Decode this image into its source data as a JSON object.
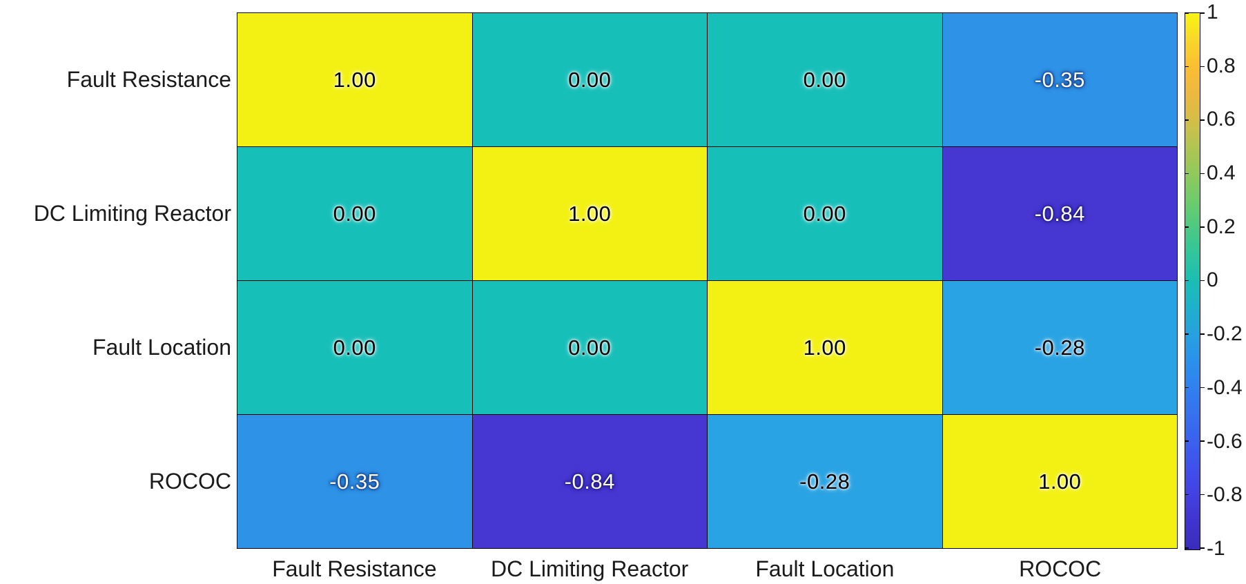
{
  "chart_data": {
    "type": "heatmap",
    "title": "",
    "colormap": "parula",
    "value_range": [
      -1,
      1
    ],
    "x_categories": [
      "Fault Resistance",
      "DC Limiting Reactor",
      "Fault Location",
      "ROCOC"
    ],
    "y_categories": [
      "Fault Resistance",
      "DC Limiting Reactor",
      "Fault Location",
      "ROCOC"
    ],
    "matrix": [
      [
        1.0,
        0.0,
        0.0,
        -0.35
      ],
      [
        0.0,
        1.0,
        0.0,
        -0.84
      ],
      [
        0.0,
        0.0,
        1.0,
        -0.28
      ],
      [
        -0.35,
        -0.84,
        -0.28,
        1.0
      ]
    ],
    "cells": [
      {
        "label": "1.00",
        "bg": "#F3F113",
        "fg": "#000000"
      },
      {
        "label": "0.00",
        "bg": "#17BFB9",
        "fg": "#000000"
      },
      {
        "label": "0.00",
        "bg": "#17BFB9",
        "fg": "#000000"
      },
      {
        "label": "-0.35",
        "bg": "#2E92E7",
        "fg": "#FFFFFF"
      },
      {
        "label": "0.00",
        "bg": "#17BFB9",
        "fg": "#000000"
      },
      {
        "label": "1.00",
        "bg": "#F3F113",
        "fg": "#000000"
      },
      {
        "label": "0.00",
        "bg": "#17BFB9",
        "fg": "#000000"
      },
      {
        "label": "-0.84",
        "bg": "#4636D2",
        "fg": "#FFFFFF"
      },
      {
        "label": "0.00",
        "bg": "#17BFB9",
        "fg": "#000000"
      },
      {
        "label": "0.00",
        "bg": "#17BFB9",
        "fg": "#000000"
      },
      {
        "label": "1.00",
        "bg": "#F3F113",
        "fg": "#000000"
      },
      {
        "label": "-0.28",
        "bg": "#29A3E3",
        "fg": "#000000"
      },
      {
        "label": "-0.35",
        "bg": "#2E92E7",
        "fg": "#FFFFFF"
      },
      {
        "label": "-0.84",
        "bg": "#4636D2",
        "fg": "#FFFFFF"
      },
      {
        "label": "-0.28",
        "bg": "#29A3E3",
        "fg": "#000000"
      },
      {
        "label": "1.00",
        "bg": "#F3F113",
        "fg": "#000000"
      }
    ],
    "colorbar": {
      "min": -1,
      "max": 1,
      "tick_labels": [
        "1",
        "0.8",
        "0.6",
        "0.4",
        "0.2",
        "0",
        "-0.2",
        "-0.4",
        "-0.6",
        "-0.8",
        "-1"
      ],
      "gradient_stops": [
        {
          "pos": 0.0,
          "color": "#3A2CB9"
        },
        {
          "pos": 0.05,
          "color": "#4033CE"
        },
        {
          "pos": 0.1,
          "color": "#4341E0"
        },
        {
          "pos": 0.15,
          "color": "#4050EA"
        },
        {
          "pos": 0.2,
          "color": "#3B60EE"
        },
        {
          "pos": 0.25,
          "color": "#3670EE"
        },
        {
          "pos": 0.3,
          "color": "#3180EF"
        },
        {
          "pos": 0.35,
          "color": "#2B90EC"
        },
        {
          "pos": 0.4,
          "color": "#27A0DF"
        },
        {
          "pos": 0.45,
          "color": "#1FB0CC"
        },
        {
          "pos": 0.5,
          "color": "#1ABEB4"
        },
        {
          "pos": 0.55,
          "color": "#2FC59D"
        },
        {
          "pos": 0.6,
          "color": "#4CC982"
        },
        {
          "pos": 0.65,
          "color": "#6DCB6B"
        },
        {
          "pos": 0.7,
          "color": "#90C95C"
        },
        {
          "pos": 0.75,
          "color": "#B1C452"
        },
        {
          "pos": 0.8,
          "color": "#D3BE48"
        },
        {
          "pos": 0.85,
          "color": "#EDB83F"
        },
        {
          "pos": 0.9,
          "color": "#FBBE33"
        },
        {
          "pos": 0.95,
          "color": "#F8D729"
        },
        {
          "pos": 1.0,
          "color": "#F8F512"
        }
      ]
    }
  }
}
